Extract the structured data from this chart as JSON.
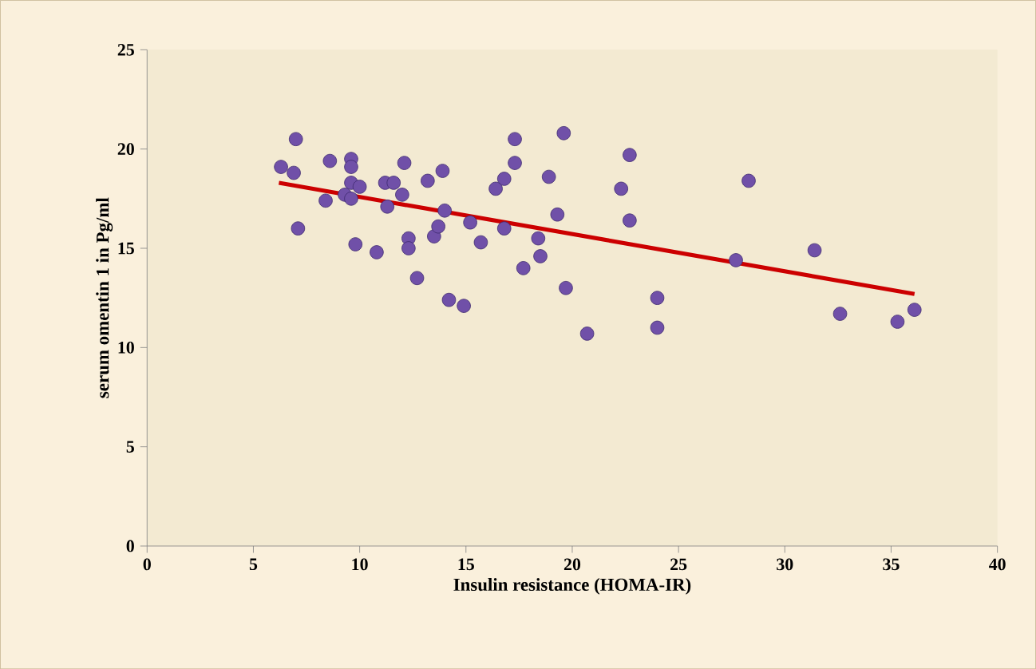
{
  "chart_data": {
    "type": "scatter",
    "xlabel": "Insulin resistance  (HOMA-IR)",
    "ylabel": "serum omentin 1 in Pg/ml",
    "xlim": [
      0,
      40
    ],
    "ylim": [
      0,
      25
    ],
    "xticks": [
      0,
      5,
      10,
      15,
      20,
      25,
      30,
      35,
      40
    ],
    "yticks": [
      0,
      5,
      10,
      15,
      20,
      25
    ],
    "grid": false,
    "series": [
      {
        "color": "#7050a8",
        "marker": "circle",
        "x": [
          7.0,
          6.3,
          6.9,
          8.6,
          9.6,
          9.6,
          12.1,
          13.2,
          13.9,
          11.2,
          11.6,
          9.6,
          10.0,
          9.3,
          9.6,
          8.4,
          11.3,
          12.0,
          7.1,
          9.8,
          10.8,
          12.3,
          12.3,
          12.7,
          13.5,
          13.7,
          14.2,
          17.3,
          19.6,
          17.3,
          16.8,
          16.4,
          18.9,
          22.7,
          22.3,
          28.3,
          14.0,
          15.2,
          16.8,
          15.7,
          19.3,
          22.7,
          18.4,
          18.5,
          17.7,
          19.7,
          27.7,
          31.4,
          14.9,
          24.0,
          24.0,
          20.7,
          32.6,
          35.3,
          36.1
        ],
        "values": [
          20.5,
          19.1,
          18.8,
          19.4,
          19.5,
          19.1,
          19.3,
          18.4,
          18.9,
          18.3,
          18.3,
          18.3,
          18.1,
          17.7,
          17.5,
          17.4,
          17.1,
          17.7,
          16.0,
          15.2,
          14.8,
          15.5,
          15.0,
          13.5,
          15.6,
          16.1,
          12.4,
          20.5,
          20.8,
          19.3,
          18.5,
          18.0,
          18.6,
          19.7,
          18.0,
          18.4,
          16.9,
          16.3,
          16.0,
          15.3,
          16.7,
          16.4,
          15.5,
          14.6,
          14.0,
          13.0,
          14.4,
          14.9,
          12.1,
          12.5,
          11.0,
          10.7,
          11.7,
          11.3,
          11.9
        ]
      },
      {
        "type": "line",
        "color": "#cc0000",
        "x": [
          6.2,
          36.1
        ],
        "values": [
          18.3,
          12.7
        ]
      }
    ]
  }
}
